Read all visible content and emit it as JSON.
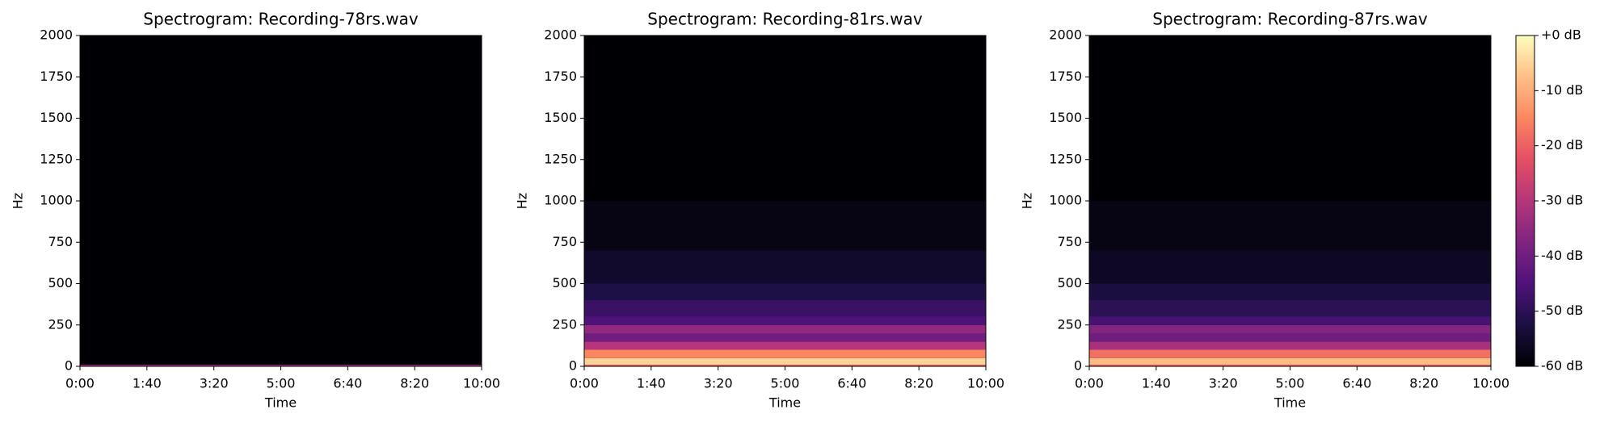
{
  "chart_data": [
    {
      "type": "heatmap",
      "title": "Spectrogram: Recording-78rs.wav",
      "xlabel": "Time",
      "ylabel": "Hz",
      "xlim": [
        0,
        600
      ],
      "xticks": [
        {
          "value": 0,
          "label": "0:00"
        },
        {
          "value": 100,
          "label": "1:40"
        },
        {
          "value": 200,
          "label": "3:20"
        },
        {
          "value": 300,
          "label": "5:00"
        },
        {
          "value": 400,
          "label": "6:40"
        },
        {
          "value": 500,
          "label": "8:20"
        },
        {
          "value": 600,
          "label": "10:00"
        }
      ],
      "ylim": [
        0,
        2000
      ],
      "yticks": [
        0,
        250,
        500,
        750,
        1000,
        1250,
        1500,
        1750,
        2000
      ],
      "freq_bins": [
        0,
        10,
        50,
        100,
        150,
        200,
        250,
        300,
        400,
        500,
        700,
        1000,
        2000
      ],
      "db": [
        -35,
        -60,
        -60,
        -60,
        -60,
        -60,
        -60,
        -60,
        -60,
        -60,
        -60,
        -60
      ],
      "clim": [
        -60,
        0
      ],
      "colormap": "magma"
    },
    {
      "type": "heatmap",
      "title": "Spectrogram: Recording-81rs.wav",
      "xlabel": "Time",
      "ylabel": "Hz",
      "xlim": [
        0,
        600
      ],
      "xticks": [
        {
          "value": 0,
          "label": "0:00"
        },
        {
          "value": 100,
          "label": "1:40"
        },
        {
          "value": 200,
          "label": "3:20"
        },
        {
          "value": 300,
          "label": "5:00"
        },
        {
          "value": 400,
          "label": "6:40"
        },
        {
          "value": 500,
          "label": "8:20"
        },
        {
          "value": 600,
          "label": "10:00"
        }
      ],
      "ylim": [
        0,
        2000
      ],
      "yticks": [
        0,
        250,
        500,
        750,
        1000,
        1250,
        1500,
        1750,
        2000
      ],
      "freq_bins": [
        0,
        10,
        50,
        100,
        150,
        200,
        250,
        300,
        400,
        500,
        700,
        1000,
        2000
      ],
      "db": [
        -20,
        -5,
        -15,
        -30,
        -40,
        -35,
        -45,
        -48,
        -52,
        -55,
        -58,
        -60
      ],
      "clim": [
        -60,
        0
      ],
      "colormap": "magma"
    },
    {
      "type": "heatmap",
      "title": "Spectrogram: Recording-87rs.wav",
      "xlabel": "Time",
      "ylabel": "Hz",
      "xlim": [
        0,
        600
      ],
      "xticks": [
        {
          "value": 0,
          "label": "0:00"
        },
        {
          "value": 100,
          "label": "1:40"
        },
        {
          "value": 200,
          "label": "3:20"
        },
        {
          "value": 300,
          "label": "5:00"
        },
        {
          "value": 400,
          "label": "6:40"
        },
        {
          "value": 500,
          "label": "8:20"
        },
        {
          "value": 600,
          "label": "10:00"
        }
      ],
      "ylim": [
        0,
        2000
      ],
      "yticks": [
        0,
        250,
        500,
        750,
        1000,
        1250,
        1500,
        1750,
        2000
      ],
      "freq_bins": [
        0,
        10,
        50,
        100,
        150,
        200,
        250,
        300,
        400,
        500,
        700,
        1000,
        2000
      ],
      "db": [
        -20,
        -8,
        -18,
        -32,
        -40,
        -37,
        -46,
        -50,
        -53,
        -56,
        -58,
        -60
      ],
      "clim": [
        -60,
        0
      ],
      "colormap": "magma",
      "cticks": [
        {
          "value": 0,
          "label": "+0 dB"
        },
        {
          "value": -10,
          "label": "-10 dB"
        },
        {
          "value": -20,
          "label": "-20 dB"
        },
        {
          "value": -30,
          "label": "-30 dB"
        },
        {
          "value": -40,
          "label": "-40 dB"
        },
        {
          "value": -50,
          "label": "-50 dB"
        },
        {
          "value": -60,
          "label": "-60 dB"
        }
      ]
    }
  ]
}
